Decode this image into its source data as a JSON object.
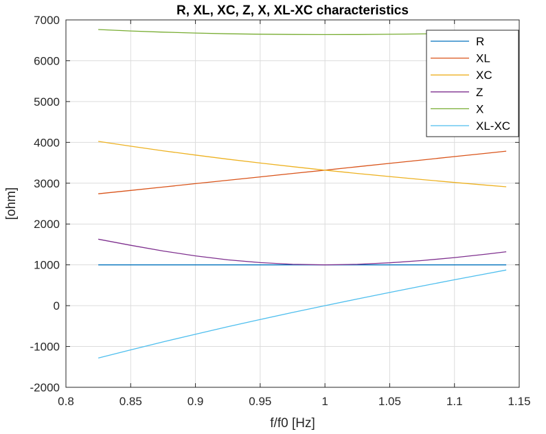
{
  "chart_data": {
    "type": "line",
    "title": "R, XL, XC, Z, X, XL-XC characteristics",
    "xlabel": "f/f0 [Hz]",
    "ylabel": "[ohm]",
    "xlim": [
      0.8,
      1.15
    ],
    "ylim": [
      -2000,
      7000
    ],
    "xticks": [
      0.8,
      0.85,
      0.9,
      0.95,
      1,
      1.05,
      1.1,
      1.15
    ],
    "xtick_labels": [
      "0.8",
      "0.85",
      "0.9",
      "0.95",
      "1",
      "1.05",
      "1.1",
      "1.15"
    ],
    "yticks": [
      -2000,
      -1000,
      0,
      1000,
      2000,
      3000,
      4000,
      5000,
      6000,
      7000
    ],
    "ytick_labels": [
      "-2000",
      "-1000",
      "0",
      "1000",
      "2000",
      "3000",
      "4000",
      "5000",
      "6000",
      "7000"
    ],
    "grid": true,
    "legend_position": "top-right",
    "x": [
      0.825,
      0.85,
      0.875,
      0.9,
      0.925,
      0.95,
      0.975,
      1.0,
      1.025,
      1.05,
      1.075,
      1.1,
      1.125,
      1.14
    ],
    "series": [
      {
        "name": "R",
        "color": "#0072bd",
        "values": [
          1000,
          1000,
          1000,
          1000,
          1000,
          1000,
          1000,
          1000,
          1000,
          1000,
          1000,
          1000,
          1000,
          1000
        ]
      },
      {
        "name": "XL",
        "color": "#d95319",
        "values": [
          2740,
          2823,
          2906,
          2989,
          3072,
          3155,
          3238,
          3320,
          3403,
          3486,
          3569,
          3652,
          3735,
          3785
        ]
      },
      {
        "name": "XC",
        "color": "#edb120",
        "values": [
          4024,
          3906,
          3794,
          3689,
          3589,
          3495,
          3405,
          3320,
          3239,
          3162,
          3088,
          3018,
          2951,
          2912
        ]
      },
      {
        "name": "Z",
        "color": "#7e2f8e",
        "values": [
          1629,
          1479,
          1339,
          1219,
          1123,
          1055,
          1013,
          1000,
          1013,
          1050,
          1106,
          1177,
          1263,
          1320
        ]
      },
      {
        "name": "X",
        "color": "#77ac30",
        "values": [
          6764,
          6729,
          6700,
          6678,
          6661,
          6650,
          6643,
          6640,
          6642,
          6648,
          6657,
          6670,
          6686,
          6697
        ]
      },
      {
        "name": "XL-XC",
        "color": "#4dbeee",
        "values": [
          -1284,
          -1083,
          -888,
          -700,
          -517,
          -340,
          -167,
          0,
          164,
          324,
          481,
          634,
          784,
          873
        ]
      }
    ]
  }
}
